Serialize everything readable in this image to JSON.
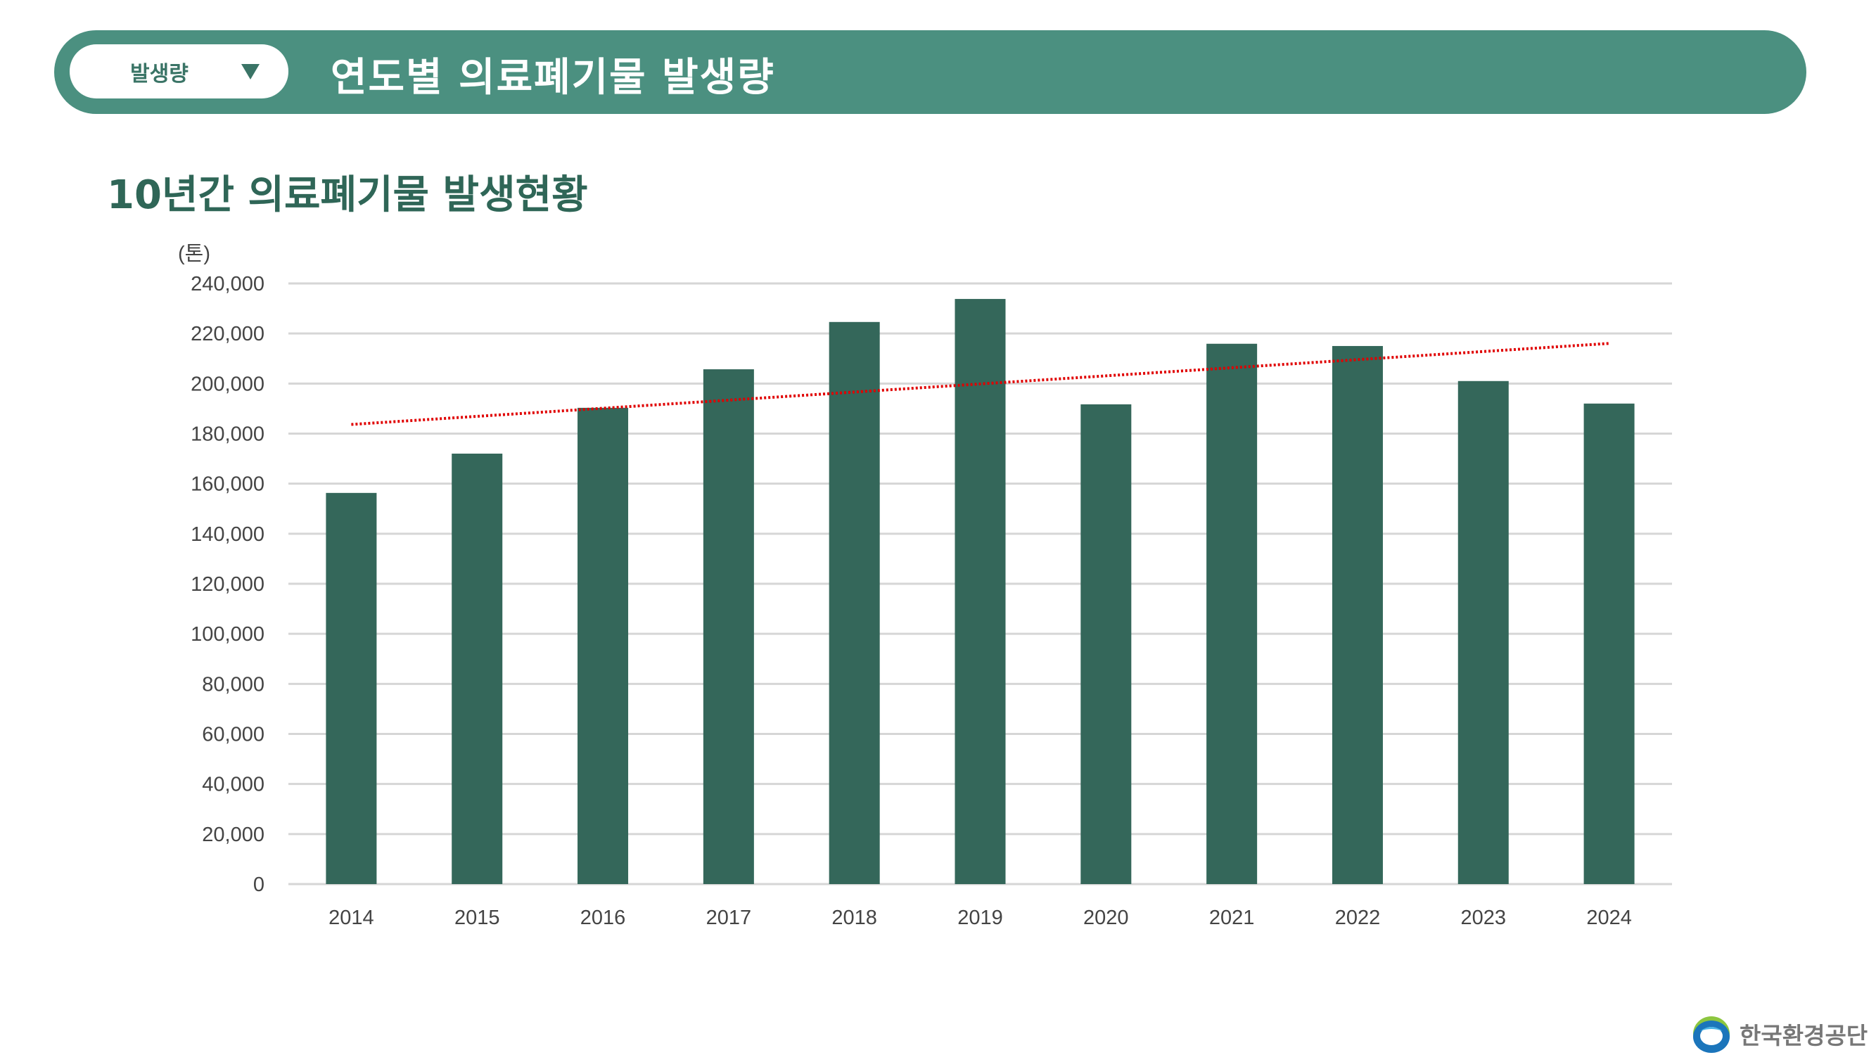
{
  "header": {
    "dropdown_label": "발생량",
    "dropdown_icon": "triangle-down-icon",
    "title": "연도별 의료폐기물 발생량"
  },
  "subtitle": "10년간 의료폐기물 발생현황",
  "chart_data": {
    "type": "bar",
    "unit_label": "(톤)",
    "categories": [
      "2014",
      "2015",
      "2016",
      "2017",
      "2018",
      "2019",
      "2020",
      "2021",
      "2022",
      "2023",
      "2024"
    ],
    "values": [
      156300,
      172000,
      190300,
      205700,
      224600,
      233800,
      191700,
      215900,
      215000,
      201000,
      192000
    ],
    "ylim": [
      0,
      240000
    ],
    "yticks": [
      "0",
      "20,000",
      "40,000",
      "60,000",
      "80,000",
      "100,000",
      "120,000",
      "140,000",
      "160,000",
      "180,000",
      "200,000",
      "220,000",
      "240,000"
    ],
    "grid": true,
    "trendline": {
      "type": "linear",
      "style": "dotted",
      "color": "#e00000"
    },
    "bar_color": "#34675a"
  },
  "logo": {
    "text": "한국환경공단"
  },
  "colors": {
    "header": "#4b9080",
    "accent": "#2f6657"
  }
}
